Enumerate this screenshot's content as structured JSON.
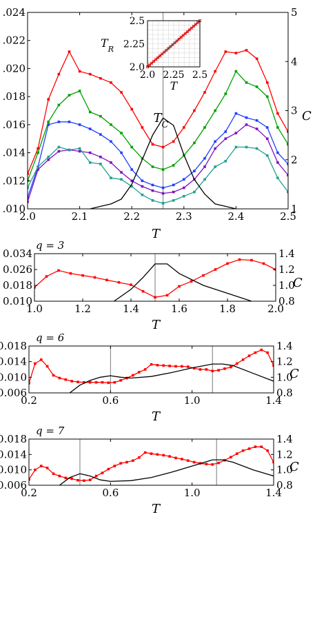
{
  "chart_data": [
    {
      "type": "line",
      "xlabel": "T",
      "ylabel_right": "C",
      "annotation": "T_C",
      "xlim": [
        2.0,
        2.5
      ],
      "ylim_left": [
        0.01,
        0.024
      ],
      "ylim_right": [
        1,
        5
      ],
      "xticks": [
        "2.0",
        "2.1",
        "2.2",
        "2.3",
        "2.4",
        "2.5"
      ],
      "yticks_left": [
        ".010",
        ".012",
        ".014",
        ".016",
        ".018",
        ".020",
        ".022",
        ".024"
      ],
      "yticks_right": [
        "1",
        "2",
        "3",
        "4",
        "5"
      ],
      "vline_x": 2.26,
      "x": [
        2.0,
        2.02,
        2.04,
        2.06,
        2.08,
        2.1,
        2.12,
        2.14,
        2.16,
        2.18,
        2.2,
        2.22,
        2.24,
        2.26,
        2.28,
        2.3,
        2.32,
        2.34,
        2.36,
        2.38,
        2.4,
        2.42,
        2.44,
        2.46,
        2.48,
        2.5
      ],
      "series": [
        {
          "color": "#ff0000",
          "axis": "left",
          "values": [
            0.0125,
            0.0143,
            0.0178,
            0.0196,
            0.0212,
            0.0198,
            0.0196,
            0.0193,
            0.019,
            0.0183,
            0.0171,
            0.0158,
            0.0146,
            0.0144,
            0.0148,
            0.0158,
            0.017,
            0.0183,
            0.0198,
            0.0212,
            0.0211,
            0.0213,
            0.0207,
            0.019,
            0.0168,
            0.0155
          ]
        },
        {
          "color": "#00a000",
          "axis": "left",
          "values": [
            0.012,
            0.014,
            0.0162,
            0.0174,
            0.0181,
            0.0184,
            0.0169,
            0.0166,
            0.016,
            0.0154,
            0.0144,
            0.0136,
            0.013,
            0.0128,
            0.0131,
            0.0138,
            0.0147,
            0.0158,
            0.017,
            0.0182,
            0.0198,
            0.019,
            0.0187,
            0.018,
            0.0158,
            0.0146
          ]
        },
        {
          "color": "#1f3fff",
          "axis": "left",
          "values": [
            0.0108,
            0.013,
            0.016,
            0.0162,
            0.0162,
            0.016,
            0.0157,
            0.0153,
            0.0148,
            0.014,
            0.0128,
            0.012,
            0.0117,
            0.0115,
            0.0117,
            0.0121,
            0.0127,
            0.0136,
            0.0148,
            0.0155,
            0.0168,
            0.0165,
            0.0163,
            0.0158,
            0.014,
            0.0132
          ]
        },
        {
          "color": "#7f10c0",
          "axis": "left",
          "values": [
            0.0105,
            0.0128,
            0.0135,
            0.0141,
            0.0142,
            0.0141,
            0.014,
            0.0137,
            0.0133,
            0.0126,
            0.012,
            0.0116,
            0.0113,
            0.0111,
            0.0112,
            0.0115,
            0.0121,
            0.013,
            0.0143,
            0.015,
            0.0154,
            0.016,
            0.0157,
            0.015,
            0.0133,
            0.0124
          ]
        },
        {
          "color": "#20a090",
          "axis": "left",
          "values": [
            0.0115,
            0.013,
            0.0137,
            0.0144,
            0.0142,
            0.0143,
            0.0133,
            0.0132,
            0.0122,
            0.0121,
            0.0116,
            0.011,
            0.0106,
            0.0104,
            0.0106,
            0.0109,
            0.0112,
            0.0121,
            0.013,
            0.0134,
            0.0144,
            0.0144,
            0.0143,
            0.0138,
            0.0122,
            0.0112
          ]
        },
        {
          "color": "#000000",
          "axis": "right",
          "markers": false,
          "values": [
            null,
            null,
            null,
            null,
            null,
            null,
            1.0,
            1.05,
            1.1,
            1.2,
            1.5,
            2.0,
            2.5,
            2.85,
            2.7,
            2.1,
            1.6,
            1.3,
            1.1,
            1.05,
            1.0,
            null,
            null,
            null,
            null,
            null
          ]
        }
      ],
      "inset": {
        "xlabel": "T",
        "ylabel": "T_R",
        "xlim": [
          2.0,
          2.5
        ],
        "ylim": [
          2.0,
          2.5
        ],
        "xticks": [
          "2.0",
          "2.25",
          "2.5"
        ],
        "yticks": [
          "2.0",
          "2.25",
          "2.5"
        ],
        "x": [
          2.0,
          2.02,
          2.04,
          2.06,
          2.08,
          2.1,
          2.12,
          2.14,
          2.16,
          2.18,
          2.2,
          2.22,
          2.24,
          2.26,
          2.28,
          2.3,
          2.32,
          2.34,
          2.36,
          2.38,
          2.4,
          2.42,
          2.44,
          2.46,
          2.48,
          2.5
        ],
        "values": [
          2.0,
          2.02,
          2.04,
          2.06,
          2.08,
          2.1,
          2.12,
          2.14,
          2.16,
          2.18,
          2.2,
          2.22,
          2.24,
          2.26,
          2.28,
          2.3,
          2.32,
          2.34,
          2.36,
          2.38,
          2.4,
          2.42,
          2.44,
          2.46,
          2.48,
          2.5
        ]
      }
    },
    {
      "type": "line",
      "label": "q = 3",
      "xlabel": "T",
      "ylabel_right": "C",
      "xlim": [
        1.0,
        2.0
      ],
      "ylim_left": [
        0.01,
        0.034
      ],
      "ylim_right": [
        0.8,
        1.4
      ],
      "xticks": [
        "1.0",
        "1.2",
        "1.4",
        "1.6",
        "1.8",
        "2.0"
      ],
      "yticks_left": [
        "0.010",
        "0.018",
        "0.026",
        "0.034"
      ],
      "yticks_right": [
        "0.8",
        "1.0",
        "1.2",
        "1.4"
      ],
      "vlines_x": [
        1.5
      ],
      "series": [
        {
          "color": "#ff0000",
          "axis": "left",
          "x": [
            1.0,
            1.05,
            1.1,
            1.15,
            1.2,
            1.25,
            1.3,
            1.35,
            1.4,
            1.45,
            1.5,
            1.55,
            1.6,
            1.65,
            1.7,
            1.75,
            1.8,
            1.85,
            1.9,
            1.95,
            2.0
          ],
          "values": [
            0.017,
            0.0225,
            0.0255,
            0.024,
            0.023,
            0.022,
            0.0207,
            0.0195,
            0.0183,
            0.015,
            0.012,
            0.013,
            0.0175,
            0.02,
            0.023,
            0.026,
            0.029,
            0.031,
            0.0307,
            0.029,
            0.026
          ]
        },
        {
          "color": "#000000",
          "axis": "right",
          "markers": false,
          "x": [
            1.33,
            1.4,
            1.45,
            1.5,
            1.55,
            1.6,
            1.7,
            1.8,
            1.9
          ],
          "values": [
            0.8,
            0.95,
            1.1,
            1.27,
            1.27,
            1.15,
            1.0,
            0.9,
            0.8
          ]
        }
      ]
    },
    {
      "type": "line",
      "label": "q = 6",
      "xlabel": "T",
      "ylabel_right": "C",
      "xlim": [
        0.2,
        1.4
      ],
      "ylim_left": [
        0.006,
        0.018
      ],
      "ylim_right": [
        0.8,
        1.4
      ],
      "xticks": [
        "0.2",
        "0.6",
        "1.0",
        "1.4"
      ],
      "yticks_left": [
        "0.006",
        "0.010",
        "0.014",
        "0.018"
      ],
      "yticks_right": [
        "0.8",
        "1.0",
        "1.2",
        "1.4"
      ],
      "vlines_x": [
        0.6,
        1.1
      ],
      "series": [
        {
          "color": "#ff0000",
          "axis": "left",
          "x": [
            0.2,
            0.23,
            0.26,
            0.29,
            0.32,
            0.35,
            0.38,
            0.41,
            0.44,
            0.47,
            0.5,
            0.53,
            0.56,
            0.59,
            0.62,
            0.65,
            0.68,
            0.71,
            0.74,
            0.77,
            0.8,
            0.83,
            0.86,
            0.89,
            0.92,
            0.95,
            0.98,
            1.01,
            1.04,
            1.07,
            1.1,
            1.13,
            1.16,
            1.19,
            1.22,
            1.25,
            1.28,
            1.31,
            1.34,
            1.37,
            1.4
          ],
          "values": [
            0.0085,
            0.0135,
            0.0145,
            0.0128,
            0.0105,
            0.0098,
            0.0094,
            0.009,
            0.0088,
            0.0087,
            0.0087,
            0.0087,
            0.0087,
            0.0086,
            0.0087,
            0.0092,
            0.0098,
            0.0105,
            0.0113,
            0.012,
            0.0133,
            0.0131,
            0.013,
            0.0129,
            0.0128,
            0.0128,
            0.0127,
            0.0123,
            0.012,
            0.012,
            0.0116,
            0.0118,
            0.0122,
            0.0126,
            0.0135,
            0.0145,
            0.0155,
            0.0163,
            0.017,
            0.0163,
            0.013
          ]
        },
        {
          "color": "#000000",
          "axis": "right",
          "markers": false,
          "x": [
            0.4,
            0.45,
            0.5,
            0.55,
            0.6,
            0.65,
            0.7,
            0.8,
            0.9,
            1.0,
            1.1,
            1.15,
            1.2,
            1.3,
            1.4
          ],
          "values": [
            0.8,
            0.9,
            0.96,
            1.0,
            1.02,
            1.0,
            0.99,
            1.01,
            1.06,
            1.12,
            1.17,
            1.17,
            1.15,
            1.05,
            0.95
          ]
        }
      ]
    },
    {
      "type": "line",
      "label": "q = 7",
      "xlabel": "T",
      "ylabel_right": "C",
      "xlim": [
        0.2,
        1.4
      ],
      "ylim_left": [
        0.006,
        0.018
      ],
      "ylim_right": [
        0.8,
        1.4
      ],
      "xticks": [
        "0.2",
        "0.6",
        "1.0",
        "1.4"
      ],
      "yticks_left": [
        "0.006",
        "0.010",
        "0.014",
        "0.018"
      ],
      "yticks_right": [
        "0.8",
        "1.0",
        "1.2",
        "1.4"
      ],
      "vlines_x": [
        0.45,
        1.12
      ],
      "series": [
        {
          "color": "#ff0000",
          "axis": "left",
          "x": [
            0.2,
            0.23,
            0.26,
            0.29,
            0.32,
            0.35,
            0.38,
            0.41,
            0.44,
            0.47,
            0.5,
            0.53,
            0.56,
            0.59,
            0.62,
            0.65,
            0.68,
            0.71,
            0.74,
            0.77,
            0.8,
            0.83,
            0.86,
            0.89,
            0.92,
            0.95,
            0.98,
            1.01,
            1.04,
            1.07,
            1.1,
            1.13,
            1.16,
            1.19,
            1.22,
            1.25,
            1.28,
            1.31,
            1.34,
            1.37,
            1.4
          ],
          "values": [
            0.0075,
            0.01,
            0.011,
            0.0105,
            0.009,
            0.0084,
            0.0079,
            0.0077,
            0.0073,
            0.0072,
            0.0074,
            0.0084,
            0.0092,
            0.0102,
            0.011,
            0.0117,
            0.012,
            0.0124,
            0.0132,
            0.0145,
            0.0142,
            0.014,
            0.0138,
            0.0135,
            0.0131,
            0.0128,
            0.0124,
            0.012,
            0.0117,
            0.0115,
            0.0114,
            0.0118,
            0.0125,
            0.0133,
            0.0142,
            0.015,
            0.0155,
            0.016,
            0.016,
            0.015,
            0.012
          ]
        },
        {
          "color": "#000000",
          "axis": "right",
          "markers": false,
          "x": [
            0.35,
            0.4,
            0.45,
            0.5,
            0.55,
            0.6,
            0.7,
            0.8,
            0.9,
            1.0,
            1.1,
            1.15,
            1.2,
            1.3,
            1.4
          ],
          "values": [
            0.8,
            0.9,
            0.95,
            0.92,
            0.87,
            0.85,
            0.86,
            0.9,
            0.97,
            1.05,
            1.13,
            1.13,
            1.1,
            1.0,
            0.92
          ]
        }
      ]
    }
  ]
}
